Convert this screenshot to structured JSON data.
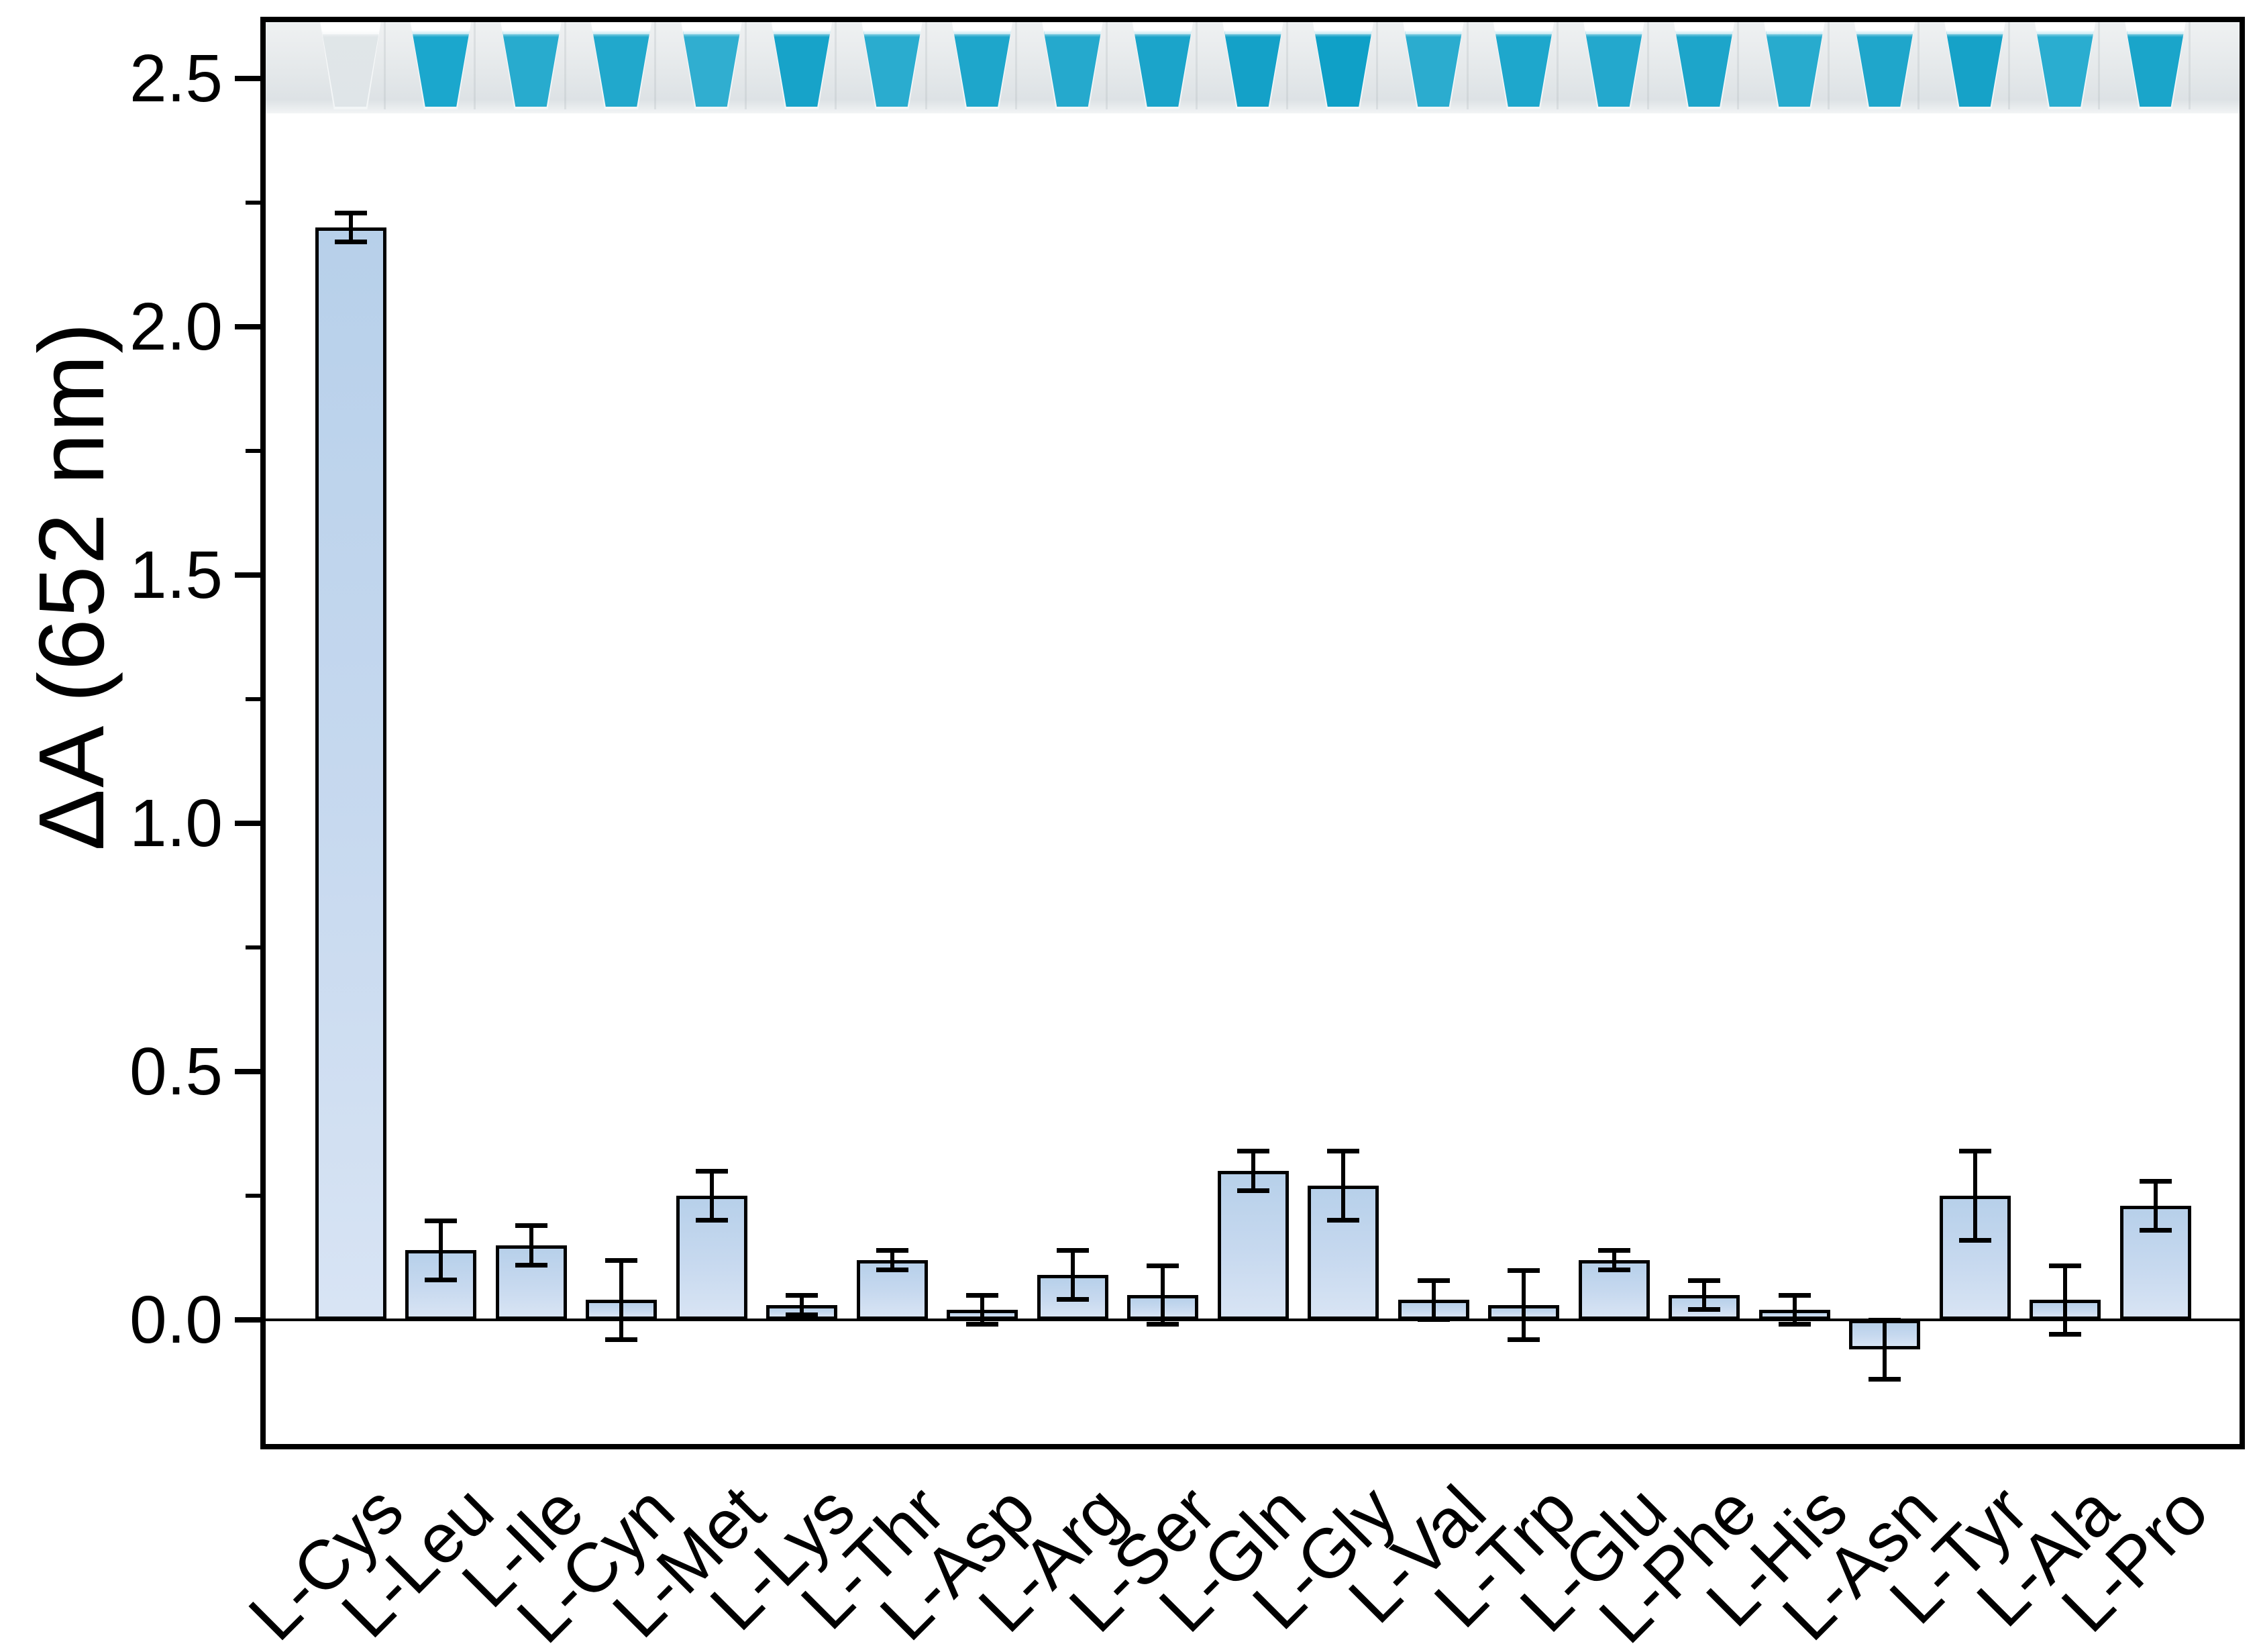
{
  "figure": {
    "ylabel": "ΔA (652 nm)",
    "xlabel": ""
  },
  "chart_data": {
    "type": "bar",
    "title": "",
    "xlabel": "",
    "ylabel": "ΔA (652 nm)",
    "categories": [
      "L-Cys",
      "L-Leu",
      "L-Ile",
      "L-Cyn",
      "L-Met",
      "L-Lys",
      "L-Thr",
      "L-Asp",
      "L-Arg",
      "L-Ser",
      "L-Gln",
      "L-Gly",
      "L-Val",
      "L-Trp",
      "L-Glu",
      "L-Phe",
      "L-His",
      "L-Asn",
      "L-Tyr",
      "L-Ala",
      "L-Pro"
    ],
    "values": [
      2.2,
      0.14,
      0.15,
      0.04,
      0.25,
      0.03,
      0.12,
      0.02,
      0.09,
      0.05,
      0.3,
      0.27,
      0.04,
      0.03,
      0.12,
      0.05,
      0.02,
      -0.06,
      0.25,
      0.04,
      0.23
    ],
    "errors": [
      0.03,
      0.06,
      0.04,
      0.08,
      0.05,
      0.02,
      0.02,
      0.03,
      0.05,
      0.06,
      0.04,
      0.07,
      0.04,
      0.07,
      0.02,
      0.03,
      0.03,
      0.06,
      0.09,
      0.07,
      0.05
    ],
    "ylim": [
      -0.26,
      2.63
    ],
    "yticks": [
      0.0,
      0.5,
      1.0,
      1.5,
      2.0,
      2.5
    ],
    "ytick_labels": [
      "0.0",
      "0.5",
      "1.0",
      "1.5",
      "2.0",
      "2.5"
    ],
    "minor_yticks": [
      0.25,
      0.75,
      1.25,
      1.75,
      2.25
    ],
    "grid": false,
    "legend": null,
    "bar_fill_top": "#b7d0ea",
    "bar_fill_bottom": "#d8e4f4",
    "bar_border_color": "#000000",
    "error_bar_color": "#000000",
    "photo_strip": {
      "description": "photograph of 21 PCR tubes, one per amino acid, above the plot",
      "background_color": "#e4e8ea",
      "first_tube_clear": true,
      "tube_liquid_colors": [
        "#dde3e6",
        "#1ba7cd",
        "#28abce",
        "#21a8cc",
        "#30aed0",
        "#17a3c9",
        "#2aaccf",
        "#1ea6cb",
        "#25a9cd",
        "#1ba4ca",
        "#14a1c8",
        "#0fa0c7",
        "#2baccf",
        "#1ea7cc",
        "#23a8cd",
        "#1da5ca",
        "#28abce",
        "#1fa6cb",
        "#16a2c8",
        "#2aadd0",
        "#1aa5ca"
      ]
    }
  }
}
